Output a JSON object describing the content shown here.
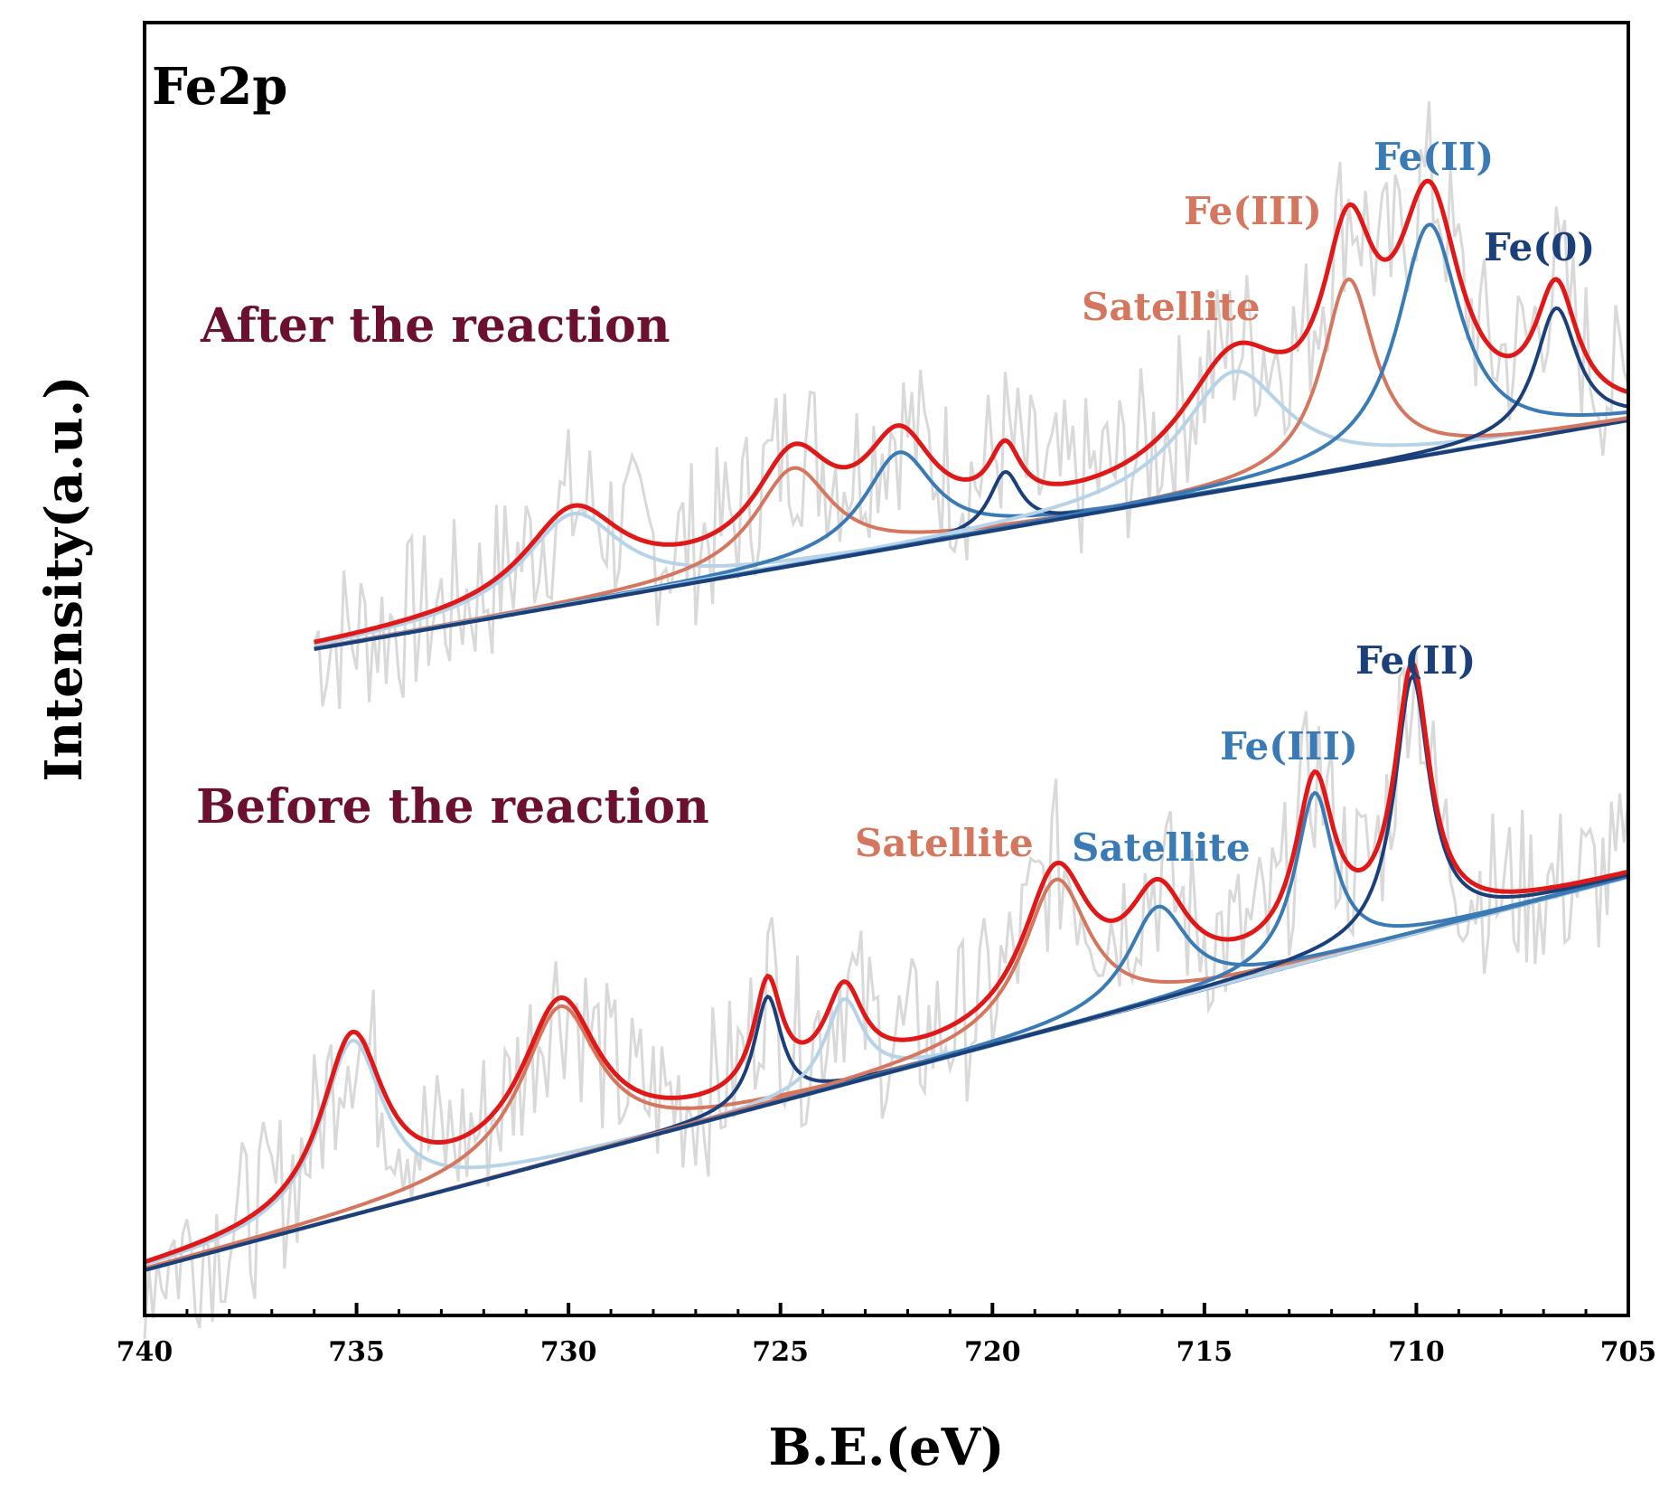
{
  "chart_data": {
    "type": "line",
    "title": "Fe2p",
    "xlabel": "B.E.(eV)",
    "ylabel": "Intensity(a.u.)",
    "xlim": [
      740,
      705
    ],
    "x_reversed": true,
    "y_ticks_shown": false,
    "xticks": [
      740,
      735,
      730,
      725,
      720,
      715,
      710,
      705
    ],
    "xtick_labels": [
      "740",
      "735",
      "730",
      "725",
      "720",
      "715",
      "710",
      "705"
    ],
    "colors": {
      "envelope": "#e01818",
      "raw": "#d9d9d9",
      "satellite_orange": "#d5765e",
      "light_blue": "#b7d3e8",
      "mid_blue": "#3a7bb5",
      "dark_blue": "#1b3f78",
      "baseline": "#9ec6e0"
    },
    "spectra": [
      {
        "label": "After the reaction",
        "x_range": [
          736,
          705
        ],
        "baseline": [
          [
            736,
            0.0
          ],
          [
            705,
            1.0
          ]
        ],
        "peaks": [
          {
            "center": 729.9,
            "height": 1.0,
            "width": 1.4,
            "color": "light_blue"
          },
          {
            "center": 724.7,
            "height": 1.08,
            "width": 1.1,
            "color": "satellite_orange"
          },
          {
            "center": 722.2,
            "height": 1.05,
            "width": 1.0,
            "color": "mid_blue"
          },
          {
            "center": 719.7,
            "height": 0.63,
            "width": 0.45,
            "color": "dark_blue"
          },
          {
            "center": 714.3,
            "height": 1.3,
            "width": 1.5,
            "color": "light_blue"
          },
          {
            "center": 711.6,
            "height": 2.1,
            "width": 0.75,
            "color": "satellite_orange"
          },
          {
            "center": 709.7,
            "height": 2.55,
            "width": 0.9,
            "color": "mid_blue"
          },
          {
            "center": 706.7,
            "height": 1.38,
            "width": 0.6,
            "color": "dark_blue"
          }
        ]
      },
      {
        "label": "Before the reaction",
        "x_range": [
          740,
          705
        ],
        "baseline": [
          [
            740,
            0.0
          ],
          [
            705,
            1.0
          ]
        ],
        "peaks": [
          {
            "center": 735.1,
            "height": 1.93,
            "width": 0.9,
            "color": "light_blue"
          },
          {
            "center": 730.2,
            "height": 1.7,
            "width": 1.1,
            "color": "satellite_orange"
          },
          {
            "center": 725.3,
            "height": 1.2,
            "width": 0.4,
            "color": "dark_blue"
          },
          {
            "center": 723.5,
            "height": 0.95,
            "width": 0.55,
            "color": "light_blue"
          },
          {
            "center": 718.5,
            "height": 1.65,
            "width": 0.95,
            "color": "satellite_orange"
          },
          {
            "center": 716.1,
            "height": 1.05,
            "width": 0.85,
            "color": "mid_blue"
          },
          {
            "center": 712.4,
            "height": 1.85,
            "width": 0.55,
            "color": "mid_blue"
          },
          {
            "center": 710.1,
            "height": 2.85,
            "width": 0.5,
            "color": "dark_blue"
          }
        ]
      }
    ],
    "annotations": [
      {
        "text": "Fe(II)",
        "color": "mid_blue",
        "spectrum": "After the reaction"
      },
      {
        "text": "Fe(III)",
        "color": "satellite_orange",
        "spectrum": "After the reaction"
      },
      {
        "text": "Fe(0)",
        "color": "dark_blue",
        "spectrum": "After the reaction"
      },
      {
        "text": "Satellite",
        "color": "satellite_orange",
        "spectrum": "After the reaction"
      },
      {
        "text": "Fe(II)",
        "color": "dark_blue",
        "spectrum": "Before the reaction"
      },
      {
        "text": "Fe(III)",
        "color": "mid_blue",
        "spectrum": "Before the reaction"
      },
      {
        "text": "Satellite",
        "color": "satellite_orange",
        "spectrum": "Before the reaction"
      },
      {
        "text": "Satellite",
        "color": "mid_blue",
        "spectrum": "Before the reaction"
      }
    ]
  }
}
